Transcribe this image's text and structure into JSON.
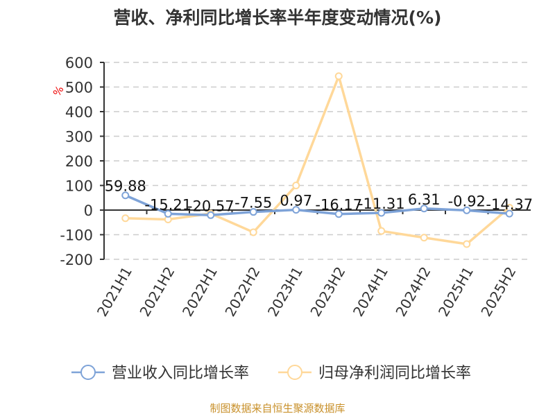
{
  "chart_data": {
    "type": "line",
    "title": "营收、净利同比增长率半年度变动情况(%)",
    "xlabel": "",
    "ylabel": "%",
    "ylim": [
      -200,
      600
    ],
    "yticks": [
      600,
      500,
      400,
      300,
      200,
      100,
      0,
      -100,
      -200
    ],
    "grid": true,
    "legend_position": "bottom",
    "categories": [
      "2021H1",
      "2021H2",
      "2022H1",
      "2022H2",
      "2023H1",
      "2023H2",
      "2024H1",
      "2024H2",
      "2025H1",
      "2025H2"
    ],
    "series": [
      {
        "name": "营业收入同比增长率",
        "color": "#7ea3d8",
        "values": [
          59.88,
          -15.21,
          -20.57,
          -7.55,
          0.97,
          -16.17,
          -11.31,
          6.31,
          -0.92,
          -14.37
        ],
        "labels": [
          "59.88",
          "-15.21",
          "-20.57",
          "-7.55",
          "0.97",
          "-16.17",
          "-11.31",
          "6.31",
          "-0.92",
          "-14.37"
        ]
      },
      {
        "name": "归母净利润同比增长率",
        "color": "#ffd899",
        "values": [
          -33,
          -38,
          -14,
          -90,
          100,
          544,
          -85,
          -112,
          -138,
          10
        ]
      }
    ]
  },
  "source": "制图数据来自恒生聚源数据库"
}
